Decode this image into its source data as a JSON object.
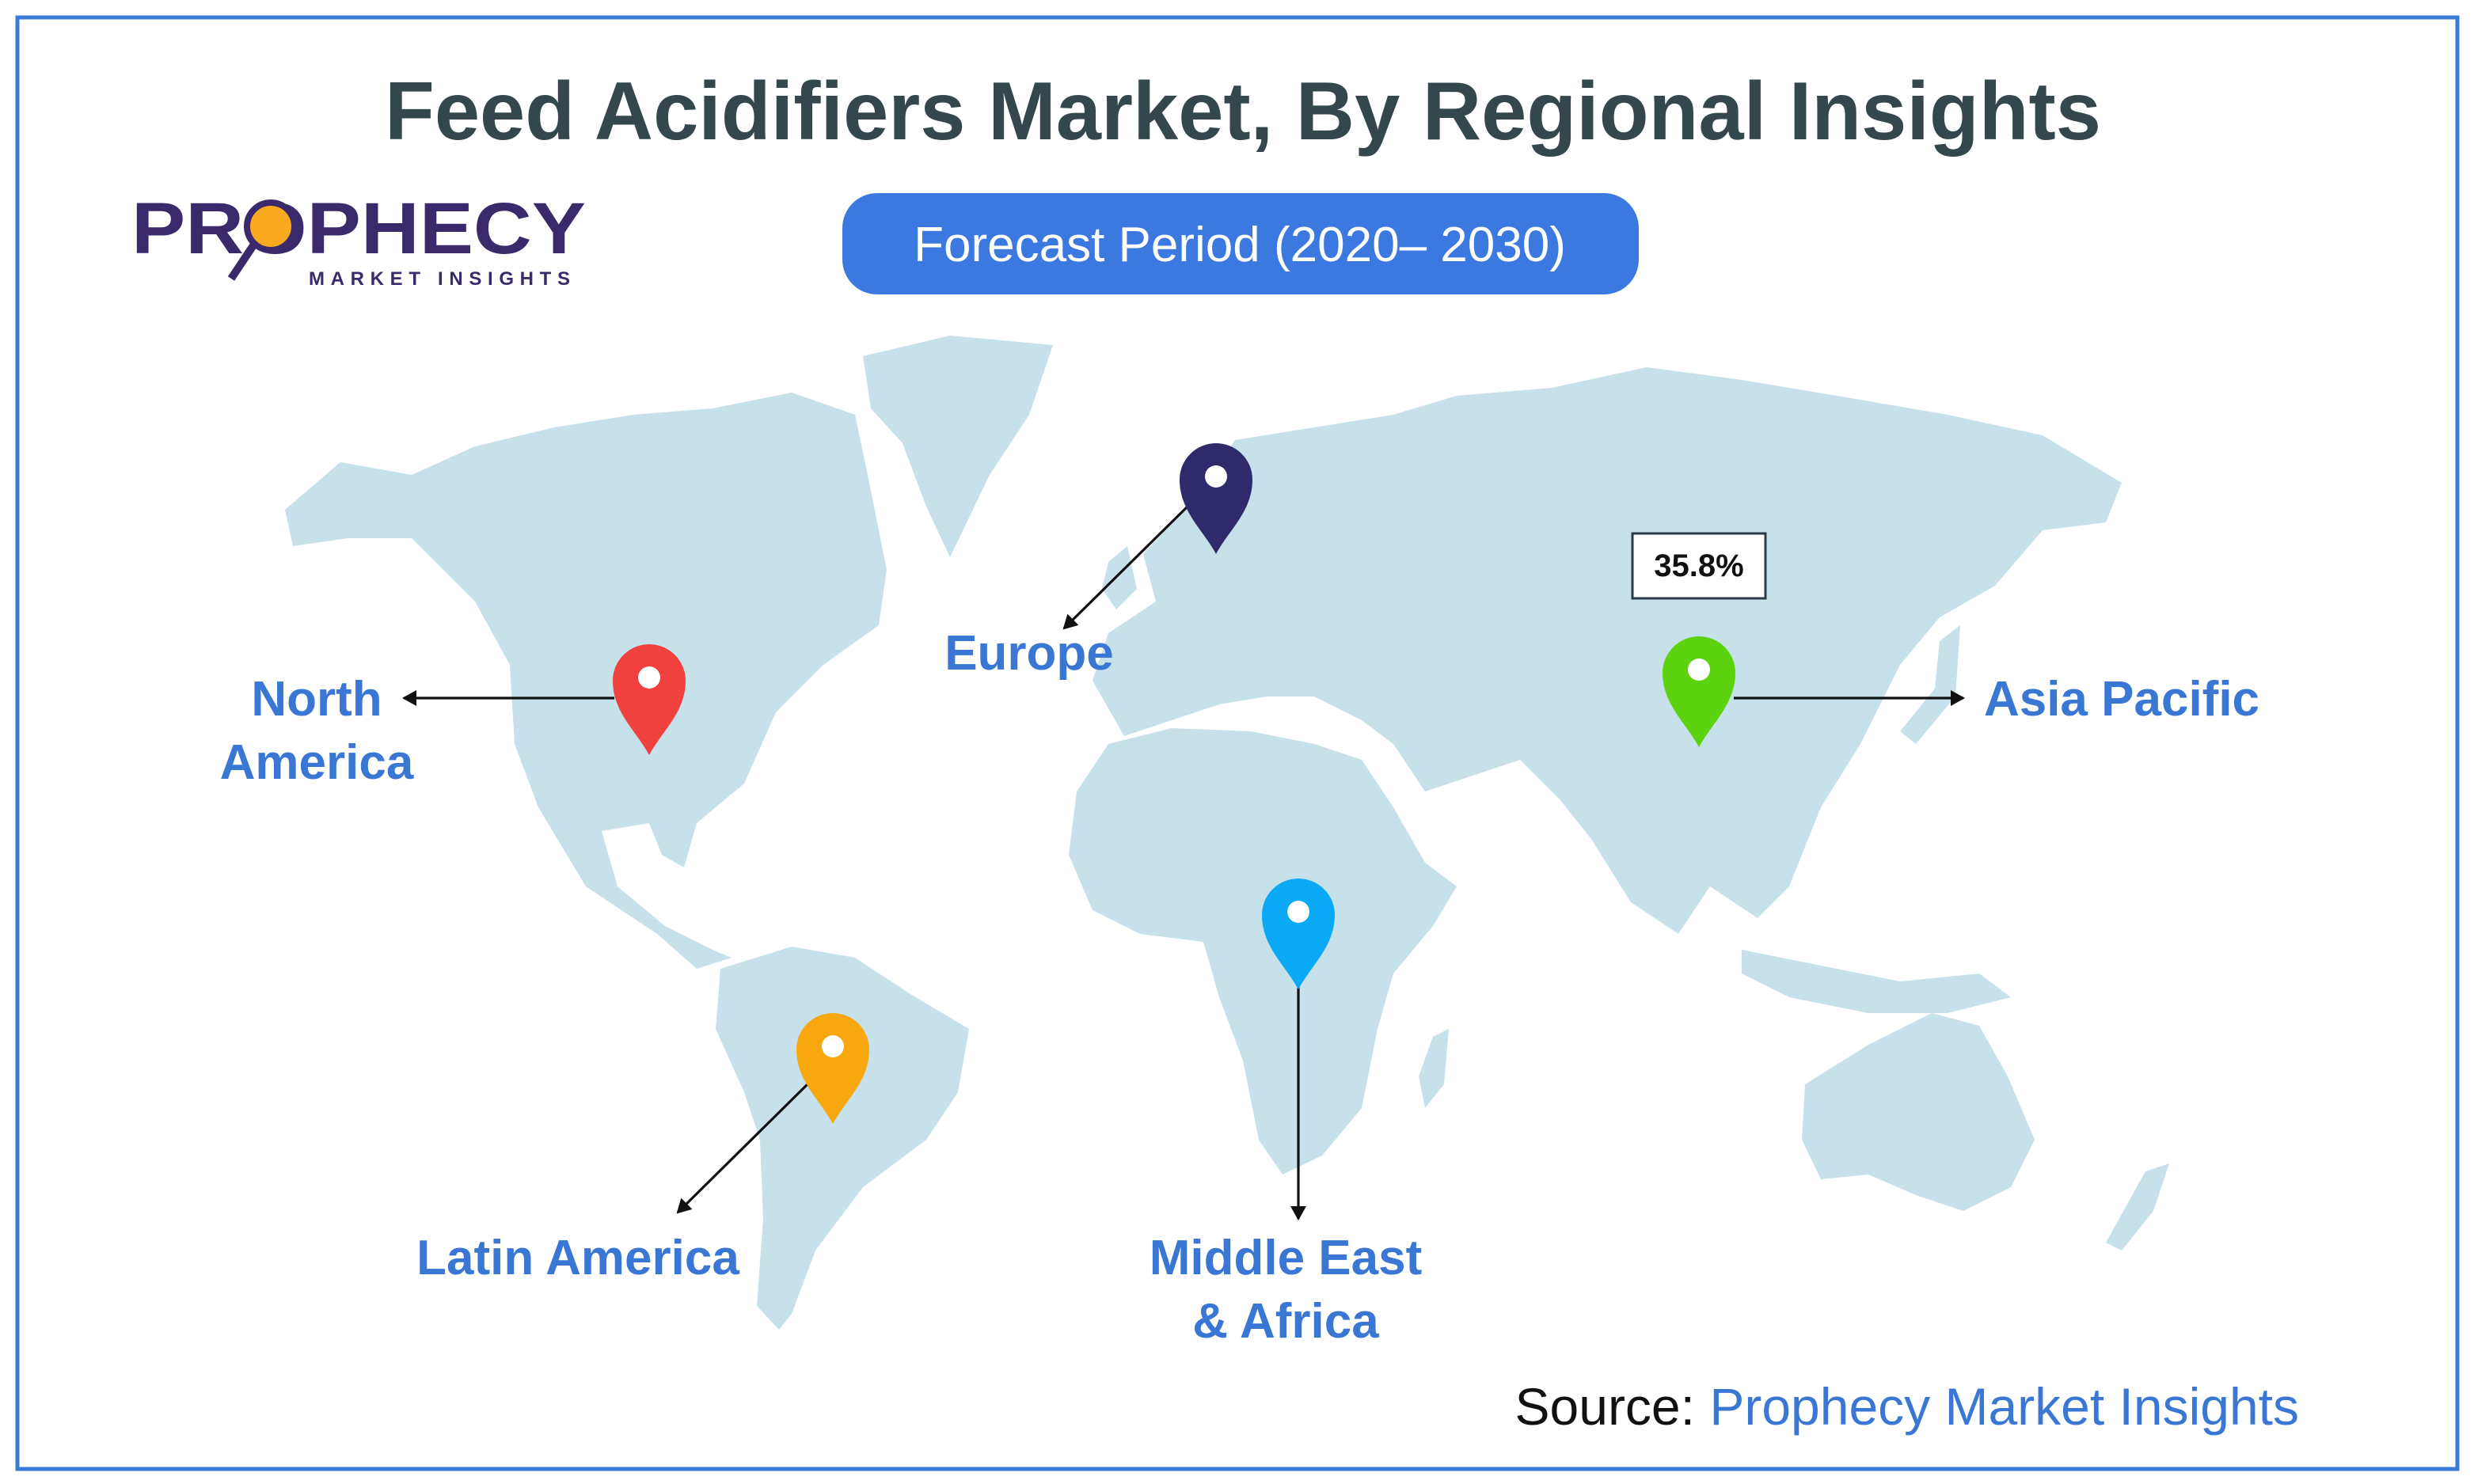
{
  "header": {
    "title": "Feed Acidifiers Market, By Regional Insights",
    "forecast": "Forecast Period (2020– 2030)"
  },
  "logo": {
    "name": "PROPHECY",
    "tagline": "MARKET INSIGHTS"
  },
  "regions": [
    {
      "label": [
        "North",
        "America"
      ]
    },
    {
      "label": [
        "Europe"
      ]
    },
    {
      "label": [
        "Asia Pacific"
      ],
      "value": "35.8%"
    },
    {
      "label": [
        "Latin America"
      ]
    },
    {
      "label": [
        "Middle East",
        "& Africa"
      ]
    }
  ],
  "source": {
    "prefix": "Source:",
    "name": "Prophecy Market Insights"
  }
}
